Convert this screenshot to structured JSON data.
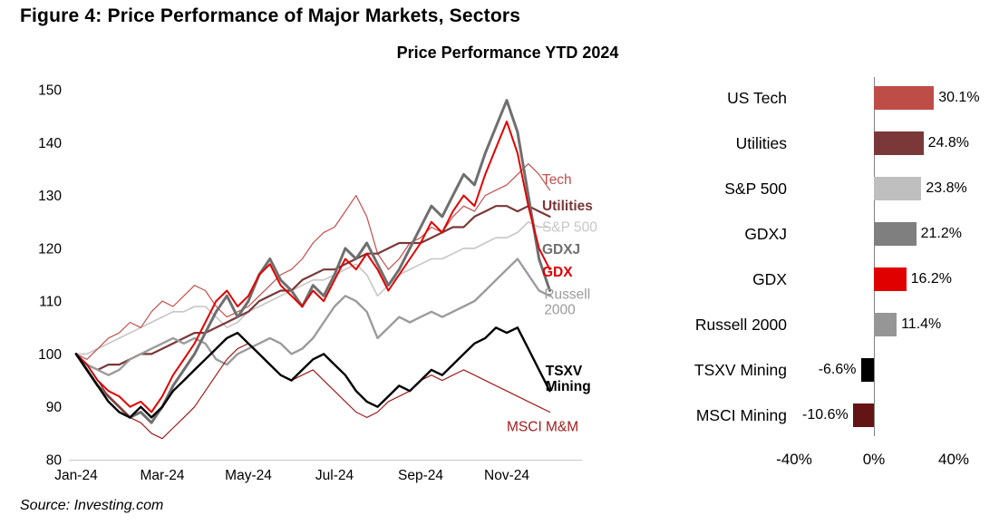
{
  "header": {
    "figure_title": "Figure 4: Price Performance of Major Markets, Sectors",
    "chart_title": "Price Performance YTD 2024"
  },
  "footer": {
    "source": "Source: Investing.com"
  },
  "chart_data": [
    {
      "type": "line",
      "title": "Price Performance YTD 2024",
      "x_unit": "months-since-Jan-2024",
      "x_start": 0,
      "x_step": 0.25,
      "xlim": [
        0,
        11.66
      ],
      "ylim": [
        80,
        150
      ],
      "grid": false,
      "y_ticks": [
        80,
        90,
        100,
        110,
        120,
        130,
        140,
        150
      ],
      "x_ticks": [
        {
          "m": 0,
          "label": "Jan-24"
        },
        {
          "m": 2,
          "label": "Mar-24"
        },
        {
          "m": 4,
          "label": "May-24"
        },
        {
          "m": 6,
          "label": "Jul-24"
        },
        {
          "m": 8,
          "label": "Sep-24"
        },
        {
          "m": 10,
          "label": "Nov-24"
        }
      ],
      "series": [
        {
          "name": "S&P 500",
          "color": "#c6c6c6",
          "width": 1.6,
          "bold_label": false,
          "label_lines": [
            "S&P 500"
          ],
          "label_m": 10.82,
          "label_v": 124,
          "values": [
            100,
            100,
            101,
            102,
            103,
            104,
            105,
            106,
            107,
            108,
            108,
            109,
            109,
            107,
            105,
            106,
            108,
            109,
            110,
            111,
            112,
            113,
            114,
            114,
            115,
            116,
            117,
            115,
            111,
            113,
            115,
            116,
            117,
            118,
            118,
            119,
            120,
            120,
            121,
            122,
            122,
            123,
            125,
            124,
            124
          ]
        },
        {
          "name": "Tech",
          "color": "#c0504d",
          "width": 1.2,
          "bold_label": false,
          "label_lines": [
            "Tech"
          ],
          "label_m": 10.82,
          "label_v": 133,
          "values": [
            100,
            99,
            101,
            103,
            104,
            106,
            105,
            108,
            110,
            109,
            111,
            113,
            112,
            109,
            107,
            108,
            109,
            111,
            113,
            115,
            116,
            118,
            121,
            123,
            124,
            127,
            130,
            126,
            119,
            116,
            118,
            121,
            122,
            124,
            123,
            126,
            128,
            127,
            130,
            131,
            132,
            134,
            136,
            134,
            131
          ]
        },
        {
          "name": "Utilities",
          "color": "#7a3838",
          "width": 2.2,
          "bold_label": true,
          "label_lines": [
            "Utilities"
          ],
          "label_m": 10.82,
          "label_v": 128,
          "values": [
            100,
            98,
            97,
            98,
            98,
            99,
            100,
            100,
            101,
            102,
            103,
            104,
            104,
            105,
            106,
            107,
            108,
            110,
            111,
            112,
            112,
            114,
            115,
            116,
            116,
            117,
            118,
            119,
            119,
            120,
            121,
            121,
            121,
            122,
            123,
            124,
            124,
            126,
            127,
            128,
            128,
            127,
            128,
            127,
            126
          ]
        },
        {
          "name": "Russell 2000",
          "color": "#9b9b9b",
          "width": 2.4,
          "bold_label": false,
          "label_lines": [
            "Russell",
            "2000"
          ],
          "label_m": 10.87,
          "label_v": 111.3,
          "values": [
            100,
            98,
            97,
            96,
            97,
            99,
            100,
            101,
            102,
            103,
            102,
            103,
            102,
            99,
            98,
            100,
            101,
            102,
            103,
            102,
            100,
            101,
            103,
            106,
            109,
            111,
            110,
            108,
            103,
            105,
            107,
            106,
            107,
            108,
            107,
            108,
            109,
            110,
            112,
            114,
            116,
            118,
            115,
            112,
            111
          ]
        },
        {
          "name": "GDXJ",
          "color": "#6f6f6f",
          "width": 3,
          "bold_label": true,
          "label_lines": [
            "GDXJ"
          ],
          "label_m": 10.82,
          "label_v": 119.8,
          "values": [
            100,
            97,
            94,
            92,
            90,
            88,
            89,
            87,
            90,
            94,
            97,
            100,
            104,
            108,
            111,
            107,
            110,
            115,
            118,
            114,
            112,
            109,
            113,
            111,
            115,
            120,
            118,
            121,
            117,
            113,
            116,
            120,
            124,
            128,
            126,
            130,
            134,
            132,
            138,
            143,
            148,
            142,
            130,
            118,
            112
          ]
        },
        {
          "name": "GDX",
          "color": "#e00000",
          "width": 2,
          "bold_label": true,
          "label_lines": [
            "GDX"
          ],
          "label_m": 10.82,
          "label_v": 115.5,
          "values": [
            100,
            98,
            95,
            93,
            92,
            90,
            91,
            89,
            92,
            96,
            99,
            102,
            106,
            110,
            112,
            109,
            111,
            115,
            117,
            113,
            111,
            109,
            112,
            110,
            114,
            118,
            116,
            119,
            116,
            112,
            115,
            118,
            121,
            125,
            123,
            127,
            130,
            128,
            134,
            139,
            144,
            138,
            128,
            120,
            116
          ]
        },
        {
          "name": "MSCI M&M",
          "color": "#9e1c1c",
          "width": 1.2,
          "bold_label": false,
          "label_lines": [
            "MSCI M&M"
          ],
          "label_m": 10.0,
          "label_v": 86.3,
          "values": [
            100,
            98,
            95,
            92,
            90,
            88,
            87,
            85,
            84,
            86,
            88,
            90,
            93,
            96,
            99,
            101,
            102,
            100,
            98,
            96,
            95,
            96,
            97,
            95,
            93,
            91,
            89,
            88,
            89,
            91,
            92,
            93,
            95,
            96,
            95,
            96,
            97,
            96,
            95,
            94,
            93,
            92,
            91,
            90,
            89
          ]
        },
        {
          "name": "TSXV Mining",
          "color": "#000000",
          "width": 2.4,
          "bold_label": true,
          "label_lines": [
            "TSXV",
            "Mining"
          ],
          "label_m": 10.9,
          "label_v": 96.8,
          "values": [
            100,
            97,
            94,
            91,
            89,
            88,
            90,
            88,
            90,
            93,
            95,
            97,
            99,
            101,
            103,
            104,
            102,
            100,
            98,
            96,
            95,
            97,
            99,
            100,
            98,
            96,
            93,
            91,
            90,
            92,
            94,
            93,
            95,
            97,
            96,
            98,
            100,
            102,
            103,
            105,
            104,
            105,
            101,
            97,
            93
          ]
        }
      ]
    },
    {
      "type": "bar",
      "orientation": "horizontal",
      "categories": [
        "US Tech",
        "Utilities",
        "S&P 500",
        "GDXJ",
        "GDX",
        "Russell 2000",
        "TSXV Mining",
        "MSCI Mining"
      ],
      "values": [
        30.1,
        24.8,
        23.8,
        21.2,
        16.2,
        11.4,
        -6.6,
        -10.6
      ],
      "value_labels": [
        "30.1%",
        "24.8%",
        "23.8%",
        "21.2%",
        "16.2%",
        "11.4%",
        "-6.6%",
        "-10.6%"
      ],
      "colors": [
        "#bf4d47",
        "#7a3838",
        "#bfbfbf",
        "#7f7f7f",
        "#e00000",
        "#969696",
        "#000000",
        "#641414"
      ],
      "xlim": [
        -40,
        40
      ],
      "x_ticks": [
        {
          "v": -40,
          "label": "-40%"
        },
        {
          "v": 0,
          "label": "0%"
        },
        {
          "v": 40,
          "label": "40%"
        }
      ]
    }
  ]
}
